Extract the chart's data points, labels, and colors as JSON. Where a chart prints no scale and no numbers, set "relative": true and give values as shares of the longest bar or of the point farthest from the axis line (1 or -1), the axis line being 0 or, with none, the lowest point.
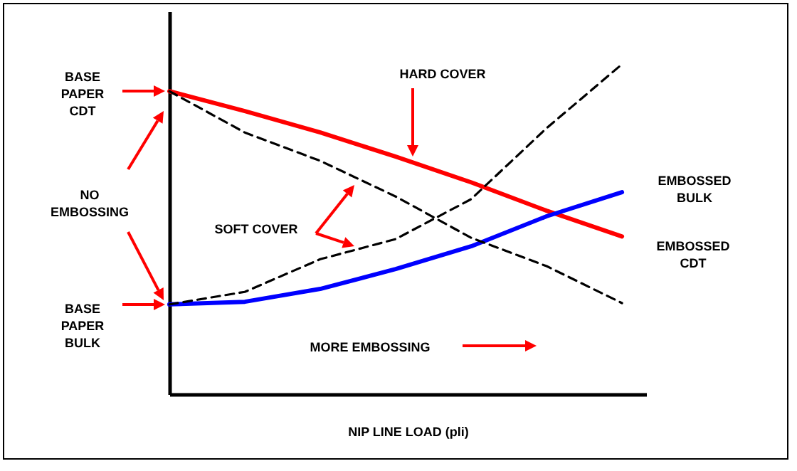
{
  "chart_data": {
    "type": "line",
    "relative": true,
    "xlabel": "NIP LINE LOAD (pli)",
    "categories": [
      null,
      null,
      null,
      null,
      null,
      null,
      null
    ],
    "series": [
      {
        "color": "#ff0000",
        "line_style": "solid",
        "values": [
          0.918,
          0.858,
          0.793,
          0.72,
          0.642,
          0.556,
          0.478
        ]
      },
      {
        "color": "#0000ff",
        "line_style": "solid",
        "values": [
          0.272,
          0.28,
          0.319,
          0.379,
          0.448,
          0.539,
          0.612
        ]
      },
      {
        "color": "#000000",
        "line_style": "dashed",
        "values": [
          0.918,
          0.793,
          0.707,
          0.599,
          0.474,
          0.388,
          0.276
        ]
      },
      {
        "color": "#000000",
        "line_style": "dashed",
        "values": [
          0.272,
          0.31,
          0.409,
          0.47,
          0.591,
          0.806,
          1
        ]
      }
    ],
    "annotations": [
      "BASE PAPER CDT",
      "NO EMBOSSING",
      "BASE PAPER BULK",
      "HARD COVER",
      "SOFT COVER",
      "MORE EMBOSSING",
      "EMBOSSED BULK",
      "EMBOSSED CDT"
    ]
  }
}
